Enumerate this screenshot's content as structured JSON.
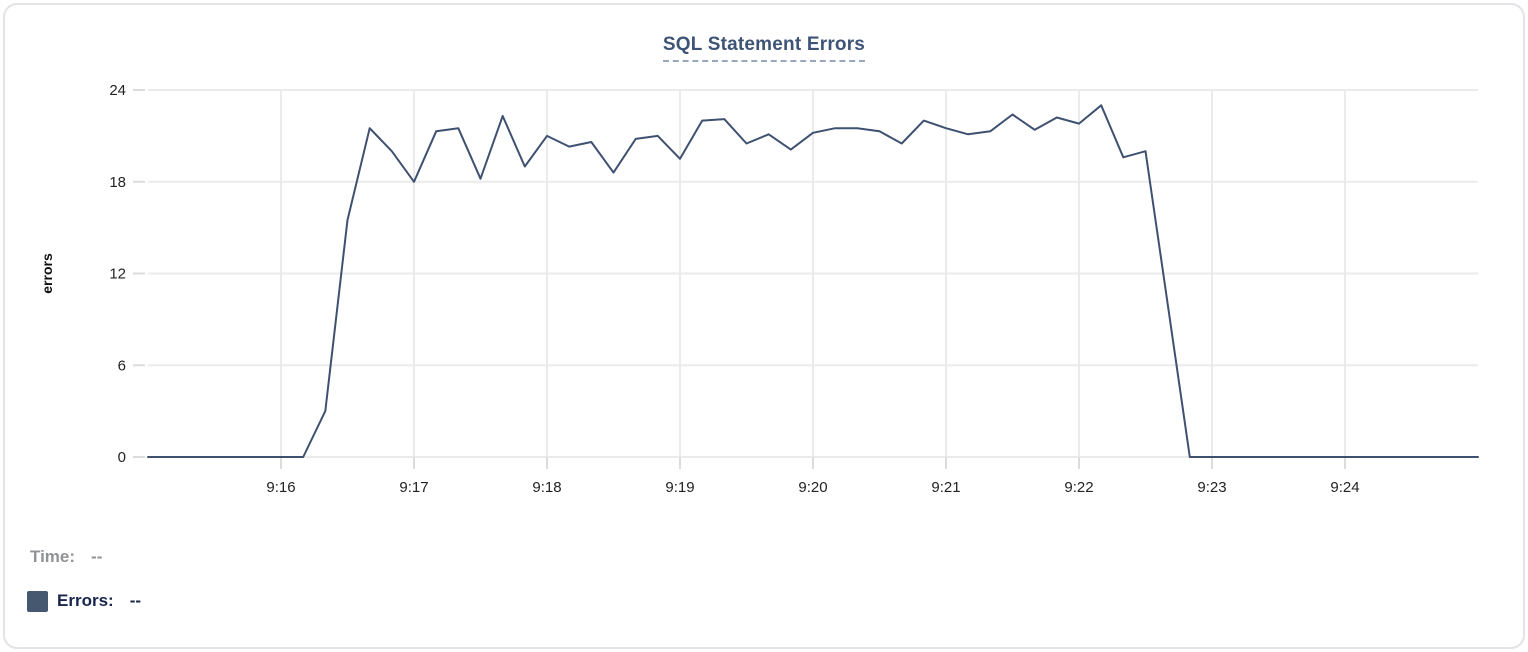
{
  "card": {
    "title": "SQL Statement Errors"
  },
  "legend": {
    "time_label": "Time:",
    "time_value": "--",
    "errors_label": "Errors:",
    "errors_value": "--"
  },
  "colors": {
    "line": "#3f5170",
    "swatch": "#46586f",
    "title_text": "#3e5476",
    "title_underline": "#98a6be",
    "grid": "#ebebeb",
    "tick": "#dcdcdc",
    "axis_text": "#232323",
    "axis_title_text": "#0f0f0f",
    "time_text": "#909295",
    "errors_text": "#17254d",
    "card_border": "#e2e3e6"
  },
  "chart_data": {
    "type": "line",
    "title": "SQL Statement Errors",
    "xlabel": "",
    "ylabel": "errors",
    "ylim": [
      0,
      24
    ],
    "y_ticks": [
      0,
      6,
      12,
      18,
      24
    ],
    "x_start": "9:15:00",
    "x_end": "9:25:00",
    "x_tick_labels": [
      "9:16",
      "9:17",
      "9:18",
      "9:19",
      "9:20",
      "9:21",
      "9:22",
      "9:23",
      "9:24"
    ],
    "grid": true,
    "legend_position": "bottom-left",
    "sample_interval_seconds": 10,
    "times": [
      "9:15:00",
      "9:15:10",
      "9:15:20",
      "9:15:30",
      "9:15:40",
      "9:15:50",
      "9:16:00",
      "9:16:10",
      "9:16:20",
      "9:16:30",
      "9:16:40",
      "9:16:50",
      "9:17:00",
      "9:17:10",
      "9:17:20",
      "9:17:30",
      "9:17:40",
      "9:17:50",
      "9:18:00",
      "9:18:10",
      "9:18:20",
      "9:18:30",
      "9:18:40",
      "9:18:50",
      "9:19:00",
      "9:19:10",
      "9:19:20",
      "9:19:30",
      "9:19:40",
      "9:19:50",
      "9:20:00",
      "9:20:10",
      "9:20:20",
      "9:20:30",
      "9:20:40",
      "9:20:50",
      "9:21:00",
      "9:21:10",
      "9:21:20",
      "9:21:30",
      "9:21:40",
      "9:21:50",
      "9:22:00",
      "9:22:10",
      "9:22:20",
      "9:22:30",
      "9:22:40",
      "9:22:50",
      "9:23:00",
      "9:23:10",
      "9:23:20",
      "9:23:30",
      "9:23:40",
      "9:23:50",
      "9:24:00",
      "9:24:10",
      "9:24:20",
      "9:24:30",
      "9:24:40",
      "9:24:50",
      "9:25:00"
    ],
    "values": [
      0,
      0,
      0,
      0,
      0,
      0,
      0,
      0,
      3,
      15.5,
      21.5,
      20,
      18,
      21.3,
      21.5,
      18.2,
      22.3,
      19,
      21,
      20.3,
      20.6,
      18.6,
      20.8,
      21,
      19.5,
      22,
      22.1,
      20.5,
      21.1,
      20.1,
      21.2,
      21.5,
      21.5,
      21.3,
      20.5,
      22,
      21.5,
      21.1,
      21.3,
      22.4,
      21.4,
      22.2,
      21.8,
      23,
      19.6,
      20,
      10,
      0,
      0,
      0,
      0,
      0,
      0,
      0,
      0,
      0,
      0,
      0,
      0,
      0,
      0
    ]
  }
}
